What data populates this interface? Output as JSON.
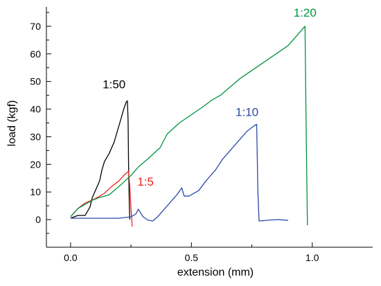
{
  "chart_data": {
    "type": "line",
    "xlabel": "extension (mm)",
    "ylabel": "load (kgf)",
    "xlim": [
      -0.1,
      1.25
    ],
    "ylim": [
      -10,
      77
    ],
    "x_ticks": [
      0.0,
      0.5,
      1.0
    ],
    "x_tick_labels": [
      "0.0",
      "0.5",
      "1.0"
    ],
    "y_ticks": [
      0,
      10,
      20,
      30,
      40,
      50,
      60,
      70
    ],
    "y_tick_labels": [
      "0",
      "10",
      "20",
      "30",
      "40",
      "50",
      "60",
      "70"
    ],
    "grid": false,
    "legend": "none",
    "series": [
      {
        "name": "1:50",
        "color": "#000000",
        "points": [
          [
            0.0,
            0.5
          ],
          [
            0.03,
            1.5
          ],
          [
            0.06,
            1.5
          ],
          [
            0.08,
            4.5
          ],
          [
            0.09,
            8
          ],
          [
            0.1,
            10
          ],
          [
            0.12,
            14
          ],
          [
            0.13,
            18
          ],
          [
            0.14,
            21
          ],
          [
            0.16,
            24
          ],
          [
            0.18,
            28
          ],
          [
            0.19,
            31
          ],
          [
            0.2,
            34
          ],
          [
            0.21,
            37
          ],
          [
            0.22,
            40
          ],
          [
            0.23,
            42.5
          ],
          [
            0.235,
            43
          ],
          [
            0.238,
            36
          ],
          [
            0.24,
            20
          ],
          [
            0.243,
            5
          ],
          [
            0.245,
            0
          ]
        ]
      },
      {
        "name": "1:5",
        "color": "#e8251c",
        "points": [
          [
            0.0,
            1
          ],
          [
            0.03,
            4
          ],
          [
            0.06,
            6
          ],
          [
            0.1,
            7.5
          ],
          [
            0.14,
            9.5
          ],
          [
            0.17,
            12
          ],
          [
            0.2,
            14
          ],
          [
            0.22,
            16
          ],
          [
            0.24,
            17.5
          ],
          [
            0.245,
            12
          ],
          [
            0.25,
            4
          ],
          [
            0.255,
            -2.5
          ]
        ]
      },
      {
        "name": "1:20",
        "color": "#00923f",
        "points": [
          [
            0.0,
            1
          ],
          [
            0.03,
            4
          ],
          [
            0.06,
            5.5
          ],
          [
            0.09,
            7
          ],
          [
            0.12,
            8
          ],
          [
            0.16,
            9
          ],
          [
            0.2,
            12
          ],
          [
            0.25,
            16
          ],
          [
            0.28,
            19
          ],
          [
            0.32,
            22
          ],
          [
            0.37,
            26
          ],
          [
            0.4,
            31
          ],
          [
            0.45,
            35
          ],
          [
            0.5,
            38
          ],
          [
            0.55,
            41
          ],
          [
            0.58,
            43
          ],
          [
            0.62,
            45
          ],
          [
            0.7,
            51
          ],
          [
            0.8,
            57
          ],
          [
            0.9,
            63
          ],
          [
            0.96,
            69
          ],
          [
            0.97,
            70
          ],
          [
            0.975,
            30
          ],
          [
            0.98,
            -2
          ]
        ]
      },
      {
        "name": "1:10",
        "color": "#2b48a8",
        "points": [
          [
            0.0,
            0.5
          ],
          [
            0.05,
            0.5
          ],
          [
            0.1,
            0.5
          ],
          [
            0.15,
            0.5
          ],
          [
            0.2,
            0.5
          ],
          [
            0.25,
            1
          ],
          [
            0.27,
            2
          ],
          [
            0.28,
            3.8
          ],
          [
            0.3,
            1
          ],
          [
            0.32,
            -0.2
          ],
          [
            0.34,
            -0.5
          ],
          [
            0.36,
            1
          ],
          [
            0.38,
            3
          ],
          [
            0.4,
            5
          ],
          [
            0.42,
            7
          ],
          [
            0.44,
            9
          ],
          [
            0.46,
            11.5
          ],
          [
            0.47,
            8.5
          ],
          [
            0.49,
            8.5
          ],
          [
            0.51,
            9.5
          ],
          [
            0.53,
            10.5
          ],
          [
            0.56,
            14
          ],
          [
            0.6,
            18
          ],
          [
            0.63,
            22
          ],
          [
            0.66,
            25
          ],
          [
            0.7,
            29
          ],
          [
            0.73,
            32
          ],
          [
            0.76,
            34
          ],
          [
            0.77,
            34.5
          ],
          [
            0.775,
            10
          ],
          [
            0.78,
            -0.5
          ],
          [
            0.82,
            -0.2
          ],
          [
            0.86,
            0
          ],
          [
            0.9,
            -0.3
          ]
        ]
      }
    ],
    "annotations": [
      {
        "text": "1:50",
        "x": 0.18,
        "y": 47.5,
        "color": "#000000"
      },
      {
        "text": "1:5",
        "x": 0.31,
        "y": 12.3,
        "color": "#e8251c"
      },
      {
        "text": "1:20",
        "x": 0.97,
        "y": 73.5,
        "color": "#00923f"
      },
      {
        "text": "1:10",
        "x": 0.73,
        "y": 37.5,
        "color": "#2b48a8"
      }
    ]
  }
}
